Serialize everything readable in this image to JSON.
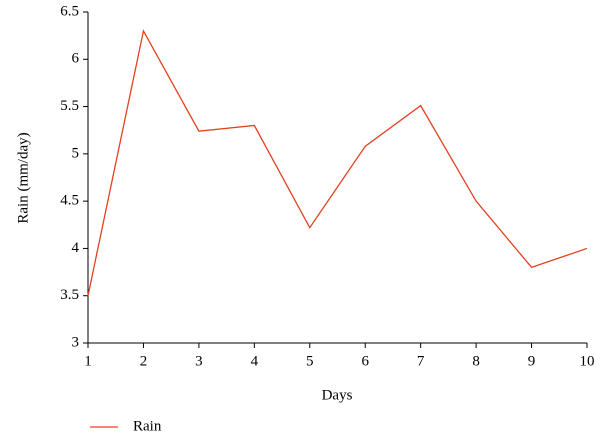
{
  "chart_data": {
    "type": "line",
    "x_label": "Days",
    "y_label": "Rain (mm/day)",
    "x": [
      1,
      2,
      3,
      4,
      5,
      6,
      7,
      8,
      9,
      10
    ],
    "series": [
      {
        "name": "Rain",
        "color": "#e2401f",
        "values": [
          3.5,
          6.3,
          5.24,
          5.3,
          4.22,
          5.08,
          5.51,
          4.5,
          3.8,
          4.0
        ]
      }
    ],
    "xlim": [
      1,
      10
    ],
    "xticks": [
      1,
      2,
      3,
      4,
      5,
      6,
      7,
      8,
      9,
      10
    ],
    "ylim": [
      3,
      6.5
    ],
    "yticks": [
      3,
      3.5,
      4,
      4.5,
      5,
      5.5,
      6,
      6.5
    ],
    "grid": false,
    "legend": "bottom-left"
  }
}
